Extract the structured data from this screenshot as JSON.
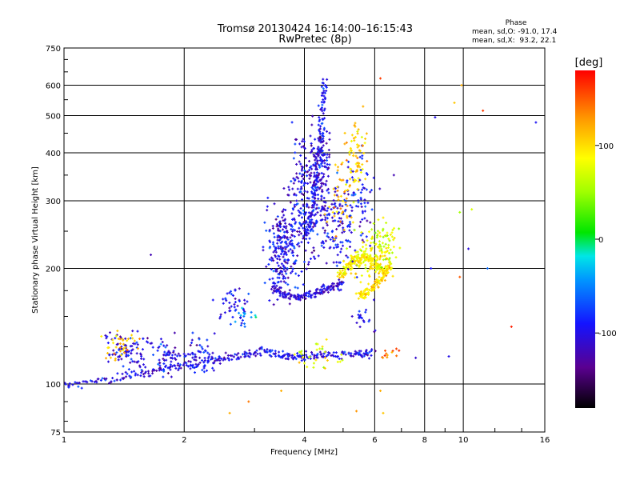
{
  "chart_data": {
    "type": "scatter",
    "title": "Tromsø 20130424 16:14:00–16:15:43",
    "subtitle": "RwPretec (8p)",
    "xlabel": "Frequency [MHz]",
    "ylabel": "Stationary phase Virtual Height [km]",
    "x_scale": "log",
    "y_scale": "log",
    "xlim": [
      1,
      16
    ],
    "ylim": [
      75,
      750
    ],
    "x_ticks": [
      1,
      2,
      4,
      6,
      8,
      10,
      16
    ],
    "y_ticks": [
      75,
      100,
      200,
      300,
      400,
      500,
      600,
      750
    ],
    "grid": true,
    "phase_info": {
      "title": "Phase",
      "line_o": "mean, sd,O: -91.0, 17.4",
      "line_x": "mean, sd,X:  93.2, 22.1"
    },
    "colorbar": {
      "label": "[deg]",
      "ticks": [
        "100",
        "0",
        "-100"
      ],
      "tick_values": [
        100,
        0,
        -100
      ],
      "range": [
        -180,
        180
      ]
    },
    "traces": [
      {
        "f": [
          1.0,
          1.3,
          1.6,
          2.0,
          2.4,
          2.8,
          3.2,
          3.6,
          4.0,
          4.6,
          5.4,
          6.0
        ],
        "h": [
          99,
          103,
          107,
          112,
          115,
          119,
          122,
          117,
          118,
          119,
          120,
          120
        ],
        "phase": -100
      },
      {
        "f": [
          3.3,
          3.6,
          3.9,
          4.3,
          4.6,
          5.0
        ],
        "h": [
          180,
          170,
          168,
          172,
          178,
          182
        ],
        "phase": -105
      },
      {
        "f": [
          4.0,
          4.2,
          4.3,
          4.4,
          4.45,
          4.5
        ],
        "h": [
          240,
          280,
          340,
          420,
          520,
          620
        ],
        "phase": -95
      },
      {
        "f": [
          4.9,
          5.1,
          5.3,
          5.6,
          5.9,
          6.2,
          6.4
        ],
        "h": [
          190,
          200,
          210,
          215,
          210,
          200,
          195
        ],
        "phase": 90
      },
      {
        "f": [
          5.5,
          5.7,
          6.0,
          6.3,
          6.6
        ],
        "h": [
          170,
          172,
          180,
          190,
          205
        ],
        "phase": 100
      }
    ],
    "clusters": [
      {
        "f": 1.45,
        "h": 122,
        "sf": 0.06,
        "sh": 0.06,
        "n": 90,
        "phase": -100
      },
      {
        "f": 1.4,
        "h": 124,
        "sf": 0.04,
        "sh": 0.05,
        "n": 35,
        "phase": 110
      },
      {
        "f": 1.8,
        "h": 117,
        "sf": 0.05,
        "sh": 0.05,
        "n": 60,
        "phase": -100
      },
      {
        "f": 2.2,
        "h": 119,
        "sf": 0.05,
        "sh": 0.05,
        "n": 60,
        "phase": -98
      },
      {
        "f": 2.7,
        "h": 160,
        "sf": 0.05,
        "sh": 0.06,
        "n": 45,
        "phase": -95
      },
      {
        "f": 2.85,
        "h": 150,
        "sf": 0.03,
        "sh": 0.04,
        "n": 15,
        "phase": -45
      },
      {
        "f": 3.55,
        "h": 230,
        "sf": 0.05,
        "sh": 0.15,
        "n": 240,
        "phase": -100
      },
      {
        "f": 4.0,
        "h": 300,
        "sf": 0.04,
        "sh": 0.2,
        "n": 180,
        "phase": -100
      },
      {
        "f": 4.4,
        "h": 350,
        "sf": 0.03,
        "sh": 0.18,
        "n": 160,
        "phase": -105
      },
      {
        "f": 4.85,
        "h": 260,
        "sf": 0.05,
        "sh": 0.15,
        "n": 100,
        "phase": -98
      },
      {
        "f": 5.5,
        "h": 280,
        "sf": 0.05,
        "sh": 0.18,
        "n": 80,
        "phase": -95
      },
      {
        "f": 4.95,
        "h": 320,
        "sf": 0.04,
        "sh": 0.15,
        "n": 50,
        "phase": 110
      },
      {
        "f": 5.45,
        "h": 390,
        "sf": 0.03,
        "sh": 0.12,
        "n": 60,
        "phase": 110
      },
      {
        "f": 6.3,
        "h": 230,
        "sf": 0.04,
        "sh": 0.08,
        "n": 90,
        "phase": 75
      },
      {
        "f": 5.7,
        "h": 210,
        "sf": 0.05,
        "sh": 0.08,
        "n": 70,
        "phase": 90
      },
      {
        "f": 5.6,
        "h": 150,
        "sf": 0.04,
        "sh": 0.05,
        "n": 20,
        "phase": -105
      },
      {
        "f": 4.5,
        "h": 120,
        "sf": 0.08,
        "sh": 0.04,
        "n": 30,
        "phase": 80
      },
      {
        "f": 6.6,
        "h": 120,
        "sf": 0.03,
        "sh": 0.02,
        "n": 12,
        "phase": 140
      }
    ],
    "scatter_points": [
      {
        "f": 1.65,
        "h": 217,
        "phase": -120
      },
      {
        "f": 2.9,
        "h": 90,
        "phase": 140
      },
      {
        "f": 2.6,
        "h": 84,
        "phase": 120
      },
      {
        "f": 3.5,
        "h": 96,
        "phase": 120
      },
      {
        "f": 5.4,
        "h": 85,
        "phase": 130
      },
      {
        "f": 6.2,
        "h": 96,
        "phase": 120
      },
      {
        "f": 6.3,
        "h": 84,
        "phase": 110
      },
      {
        "f": 7.6,
        "h": 117,
        "phase": -110
      },
      {
        "f": 8.3,
        "h": 200,
        "phase": -90
      },
      {
        "f": 8.5,
        "h": 495,
        "phase": -100
      },
      {
        "f": 9.2,
        "h": 118,
        "phase": -100
      },
      {
        "f": 9.5,
        "h": 540,
        "phase": 110
      },
      {
        "f": 9.8,
        "h": 280,
        "phase": 50
      },
      {
        "f": 9.8,
        "h": 190,
        "phase": 150
      },
      {
        "f": 9.9,
        "h": 600,
        "phase": 120
      },
      {
        "f": 10.3,
        "h": 225,
        "phase": -105
      },
      {
        "f": 10.5,
        "h": 285,
        "phase": 70
      },
      {
        "f": 11.2,
        "h": 515,
        "phase": 160
      },
      {
        "f": 11.5,
        "h": 200,
        "phase": -60
      },
      {
        "f": 13.2,
        "h": 141,
        "phase": 170
      },
      {
        "f": 15.2,
        "h": 480,
        "phase": -95
      },
      {
        "f": 6.2,
        "h": 625,
        "phase": 160
      },
      {
        "f": 6.7,
        "h": 350,
        "phase": -120
      }
    ]
  }
}
